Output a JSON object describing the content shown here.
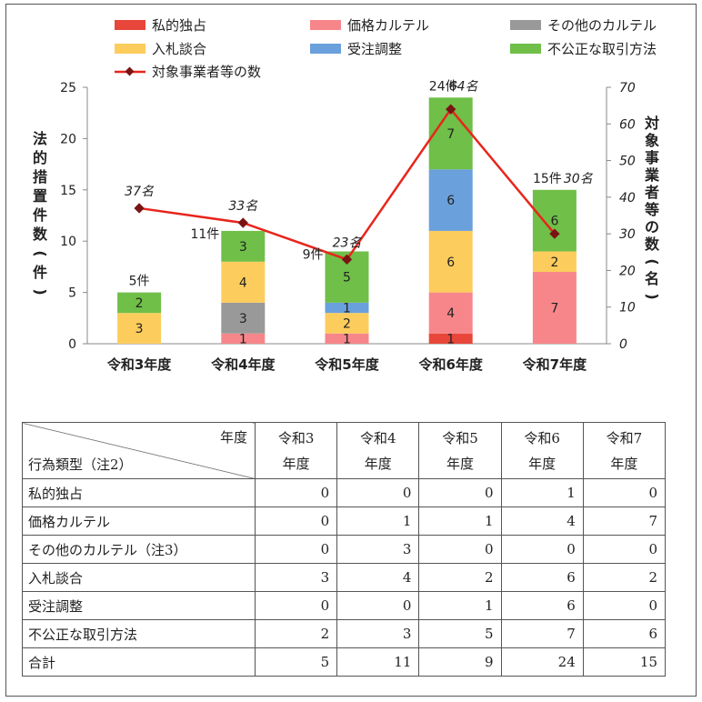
{
  "chart_data": {
    "type": "bar",
    "stacked": true,
    "categories": [
      "令和3年度",
      "令和4年度",
      "令和5年度",
      "令和6年度",
      "令和7年度"
    ],
    "series": [
      {
        "name": "私的独占",
        "values": [
          0,
          0,
          0,
          1,
          0
        ],
        "color": "#e8463a"
      },
      {
        "name": "価格カルテル",
        "values": [
          0,
          1,
          1,
          4,
          7
        ],
        "color": "#f7868a"
      },
      {
        "name": "その他のカルテル",
        "values": [
          0,
          3,
          0,
          0,
          0
        ],
        "color": "#999999"
      },
      {
        "name": "入札談合",
        "values": [
          3,
          4,
          2,
          6,
          2
        ],
        "color": "#fccd5d"
      },
      {
        "name": "受注調整",
        "values": [
          0,
          0,
          1,
          6,
          0
        ],
        "color": "#6aa0db"
      },
      {
        "name": "不公正な取引方法",
        "values": [
          2,
          3,
          5,
          7,
          6
        ],
        "color": "#6fbf48"
      }
    ],
    "line_series": {
      "name": "対象事業者等の数",
      "values": [
        37,
        33,
        23,
        64,
        30
      ],
      "color": "#e8251c",
      "marker_color": "#7a1414"
    },
    "totals": [
      5,
      11,
      9,
      24,
      15
    ],
    "total_labels": [
      "5件",
      "11件",
      "9件",
      "24件",
      "15件"
    ],
    "line_labels": [
      "37名",
      "33名",
      "23名",
      "64名",
      "30名"
    ],
    "ylabel": "法的措置件数(件)",
    "ylabel_right": "対象事業者等の数(名)",
    "ylim": [
      0,
      25
    ],
    "ylim_right": [
      0,
      70
    ],
    "yticks": [
      0,
      5,
      10,
      15,
      20,
      25
    ],
    "yticks_right": [
      0,
      10,
      20,
      30,
      40,
      50,
      60,
      70
    ],
    "legend_position": "top"
  },
  "table": {
    "corner_top": "年度",
    "corner_bottom": "行為類型（注2）",
    "columns": [
      {
        "line1": "令和3",
        "line2": "年度"
      },
      {
        "line1": "令和4",
        "line2": "年度"
      },
      {
        "line1": "令和5",
        "line2": "年度"
      },
      {
        "line1": "令和6",
        "line2": "年度"
      },
      {
        "line1": "令和7",
        "line2": "年度"
      }
    ],
    "rows": [
      {
        "label": "私的独占",
        "values": [
          "0",
          "0",
          "0",
          "1",
          "0"
        ]
      },
      {
        "label": "価格カルテル",
        "values": [
          "0",
          "1",
          "1",
          "4",
          "7"
        ]
      },
      {
        "label": "その他のカルテル（注3）",
        "values": [
          "0",
          "3",
          "0",
          "0",
          "0"
        ]
      },
      {
        "label": "入札談合",
        "values": [
          "3",
          "4",
          "2",
          "6",
          "2"
        ]
      },
      {
        "label": "受注調整",
        "values": [
          "0",
          "0",
          "1",
          "6",
          "0"
        ]
      },
      {
        "label": "不公正な取引方法",
        "values": [
          "2",
          "3",
          "5",
          "7",
          "6"
        ]
      },
      {
        "label": "合計",
        "values": [
          "5",
          "11",
          "9",
          "24",
          "15"
        ]
      }
    ]
  }
}
